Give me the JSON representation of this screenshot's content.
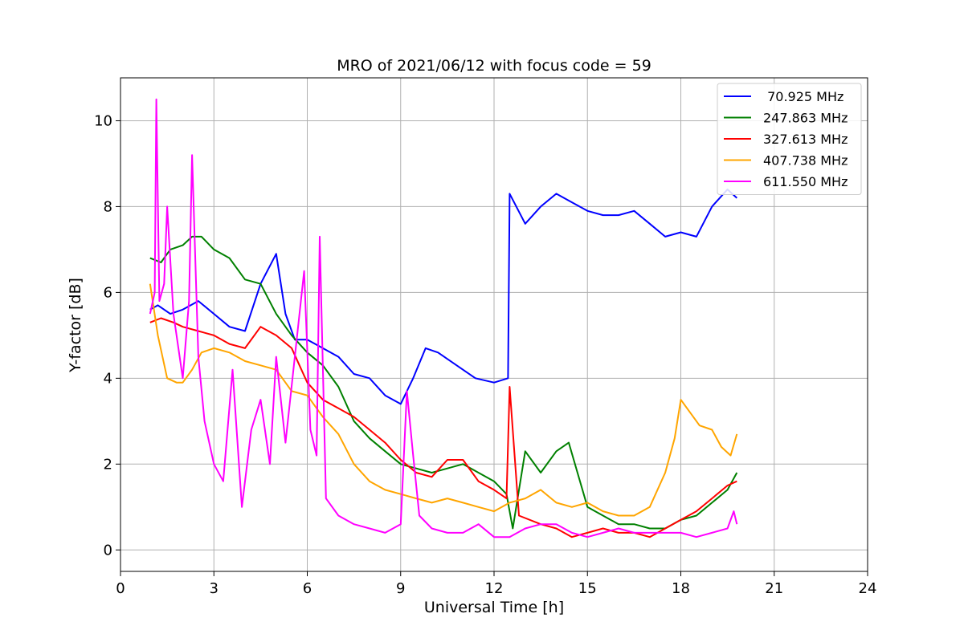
{
  "chart_data": {
    "type": "line",
    "title": "MRO of 2021/06/12 with focus code = 59",
    "xlabel": "Universal Time [h]",
    "ylabel": "Y-factor [dB]",
    "xlim": [
      0,
      24
    ],
    "ylim": [
      -0.5,
      11
    ],
    "xticks": [
      0,
      3,
      6,
      9,
      12,
      15,
      18,
      21,
      24
    ],
    "yticks": [
      0,
      2,
      4,
      6,
      8,
      10
    ],
    "grid": true,
    "legend_position": "top-right",
    "series": [
      {
        "name": " 70.925 MHz",
        "color": "#0000ff",
        "x": [
          0.95,
          1.2,
          1.6,
          2.0,
          2.5,
          3.0,
          3.5,
          4.0,
          4.5,
          5.0,
          5.3,
          5.6,
          6.0,
          6.5,
          7.0,
          7.5,
          8.0,
          8.5,
          9.0,
          9.4,
          9.8,
          10.2,
          10.8,
          11.4,
          12.0,
          12.45,
          12.5,
          13.0,
          13.5,
          14.0,
          14.5,
          15.0,
          15.5,
          16.0,
          16.5,
          17.0,
          17.5,
          18.0,
          18.5,
          19.0,
          19.5,
          19.8
        ],
        "y": [
          5.6,
          5.7,
          5.5,
          5.6,
          5.8,
          5.5,
          5.2,
          5.1,
          6.2,
          6.9,
          5.5,
          4.9,
          4.9,
          4.7,
          4.5,
          4.1,
          4.0,
          3.6,
          3.4,
          4.0,
          4.7,
          4.6,
          4.3,
          4.0,
          3.9,
          4.0,
          8.3,
          7.6,
          8.0,
          8.3,
          8.1,
          7.9,
          7.8,
          7.8,
          7.9,
          7.6,
          7.3,
          7.4,
          7.3,
          8.0,
          8.4,
          8.2
        ]
      },
      {
        "name": "247.863 MHz",
        "color": "#008000",
        "x": [
          0.95,
          1.3,
          1.6,
          2.0,
          2.3,
          2.6,
          3.0,
          3.5,
          4.0,
          4.5,
          5.0,
          5.5,
          6.0,
          6.5,
          7.0,
          7.5,
          8.0,
          8.5,
          9.0,
          9.5,
          10.0,
          10.5,
          11.0,
          11.5,
          12.0,
          12.4,
          12.6,
          13.0,
          13.5,
          14.0,
          14.4,
          15.0,
          15.5,
          16.0,
          16.5,
          17.0,
          17.5,
          18.0,
          18.5,
          19.0,
          19.5,
          19.8
        ],
        "y": [
          6.8,
          6.7,
          7.0,
          7.1,
          7.3,
          7.3,
          7.0,
          6.8,
          6.3,
          6.2,
          5.5,
          5.0,
          4.6,
          4.3,
          3.8,
          3.0,
          2.6,
          2.3,
          2.0,
          1.9,
          1.8,
          1.9,
          2.0,
          1.8,
          1.6,
          1.3,
          0.5,
          2.3,
          1.8,
          2.3,
          2.5,
          1.0,
          0.8,
          0.6,
          0.6,
          0.5,
          0.5,
          0.7,
          0.8,
          1.1,
          1.4,
          1.8
        ]
      },
      {
        "name": "327.613 MHz",
        "color": "#ff0000",
        "x": [
          0.95,
          1.3,
          1.7,
          2.0,
          2.5,
          3.0,
          3.5,
          4.0,
          4.5,
          5.0,
          5.5,
          6.0,
          6.5,
          7.0,
          7.5,
          8.0,
          8.5,
          9.0,
          9.5,
          10.0,
          10.5,
          11.0,
          11.5,
          12.0,
          12.4,
          12.5,
          12.8,
          13.5,
          14.0,
          14.5,
          15.0,
          15.5,
          16.0,
          16.5,
          17.0,
          17.5,
          18.0,
          18.5,
          19.0,
          19.5,
          19.8
        ],
        "y": [
          5.3,
          5.4,
          5.3,
          5.2,
          5.1,
          5.0,
          4.8,
          4.7,
          5.2,
          5.0,
          4.7,
          3.9,
          3.5,
          3.3,
          3.1,
          2.8,
          2.5,
          2.1,
          1.8,
          1.7,
          2.1,
          2.1,
          1.6,
          1.4,
          1.2,
          3.8,
          0.8,
          0.6,
          0.5,
          0.3,
          0.4,
          0.5,
          0.4,
          0.4,
          0.3,
          0.5,
          0.7,
          0.9,
          1.2,
          1.5,
          1.6
        ]
      },
      {
        "name": "407.738 MHz",
        "color": "#ffa500",
        "x": [
          0.95,
          1.2,
          1.5,
          1.8,
          2.0,
          2.3,
          2.6,
          3.0,
          3.5,
          4.0,
          4.5,
          5.0,
          5.5,
          6.0,
          6.5,
          7.0,
          7.5,
          8.0,
          8.5,
          9.0,
          9.5,
          10.0,
          10.5,
          11.0,
          11.5,
          12.0,
          12.5,
          13.0,
          13.5,
          14.0,
          14.5,
          15.0,
          15.5,
          16.0,
          16.5,
          17.0,
          17.5,
          17.8,
          18.0,
          18.3,
          18.6,
          19.0,
          19.3,
          19.6,
          19.8
        ],
        "y": [
          6.2,
          5.0,
          4.0,
          3.9,
          3.9,
          4.2,
          4.6,
          4.7,
          4.6,
          4.4,
          4.3,
          4.2,
          3.7,
          3.6,
          3.1,
          2.7,
          2.0,
          1.6,
          1.4,
          1.3,
          1.2,
          1.1,
          1.2,
          1.1,
          1.0,
          0.9,
          1.1,
          1.2,
          1.4,
          1.1,
          1.0,
          1.1,
          0.9,
          0.8,
          0.8,
          1.0,
          1.8,
          2.6,
          3.5,
          3.2,
          2.9,
          2.8,
          2.4,
          2.2,
          2.7
        ]
      },
      {
        "name": "611.550 MHz",
        "color": "#ff00ff",
        "x": [
          0.95,
          1.1,
          1.15,
          1.25,
          1.4,
          1.5,
          1.7,
          2.0,
          2.2,
          2.3,
          2.5,
          2.7,
          3.0,
          3.3,
          3.6,
          3.9,
          4.2,
          4.5,
          4.8,
          5.0,
          5.3,
          5.6,
          5.9,
          6.1,
          6.3,
          6.4,
          6.6,
          7.0,
          7.5,
          8.0,
          8.5,
          9.0,
          9.2,
          9.4,
          9.6,
          10.0,
          10.5,
          11.0,
          11.5,
          12.0,
          12.5,
          13.0,
          13.5,
          14.0,
          14.5,
          15.0,
          15.5,
          16.0,
          16.5,
          17.0,
          17.5,
          18.0,
          18.5,
          19.0,
          19.5,
          19.7,
          19.8
        ],
        "y": [
          5.5,
          6.0,
          10.5,
          5.8,
          6.2,
          8.0,
          5.5,
          4.0,
          5.8,
          9.2,
          4.5,
          3.0,
          2.0,
          1.6,
          4.2,
          1.0,
          2.8,
          3.5,
          2.0,
          4.5,
          2.5,
          4.5,
          6.5,
          2.8,
          2.2,
          7.3,
          1.2,
          0.8,
          0.6,
          0.5,
          0.4,
          0.6,
          3.7,
          2.2,
          0.8,
          0.5,
          0.4,
          0.4,
          0.6,
          0.3,
          0.3,
          0.5,
          0.6,
          0.6,
          0.4,
          0.3,
          0.4,
          0.5,
          0.4,
          0.4,
          0.4,
          0.4,
          0.3,
          0.4,
          0.5,
          0.9,
          0.6
        ]
      }
    ]
  }
}
